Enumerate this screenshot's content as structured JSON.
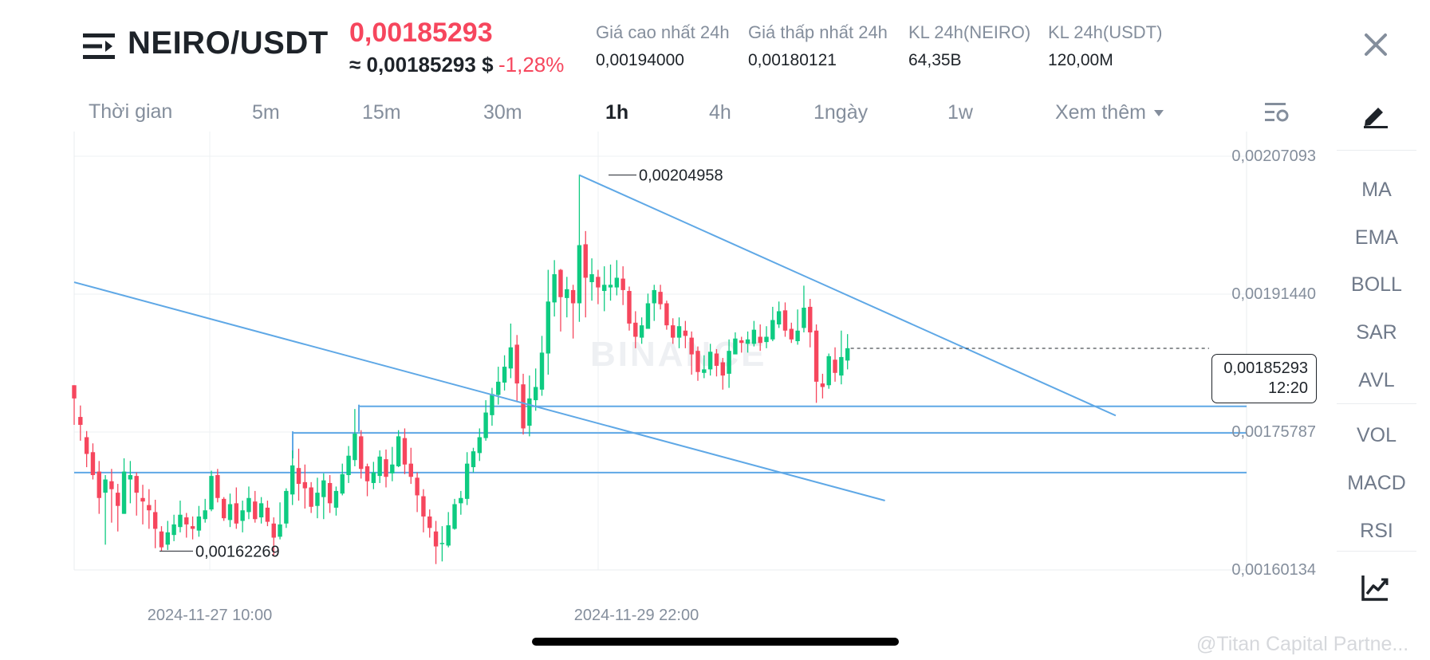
{
  "header": {
    "pair": "NEIRO/USDT",
    "last_price": "0,00185293",
    "approx_price": "≈ 0,00185293 $",
    "change_pct": "-1,28%",
    "stats": [
      {
        "label": "Giá cao nhất 24h",
        "value": "0,00194000"
      },
      {
        "label": "Giá thấp nhất 24h",
        "value": "0,00180121"
      },
      {
        "label": "KL 24h(NEIRO)",
        "value": "64,35B"
      },
      {
        "label": "KL 24h(USDT)",
        "value": "120,00M"
      }
    ]
  },
  "intervals": {
    "label": "Thời gian",
    "items": [
      "5m",
      "15m",
      "30m",
      "1h",
      "4h",
      "1ngày",
      "1w"
    ],
    "active": "1h",
    "more": "Xem thêm"
  },
  "indicators": [
    "MA",
    "EMA",
    "BOLL",
    "SAR",
    "AVL",
    "VOL",
    "MACD",
    "RSI"
  ],
  "colors": {
    "up": "#0ecb81",
    "down": "#f6465d",
    "trendline": "#5fa8e6",
    "text": "#1e2329",
    "muted": "#848e9c"
  },
  "icons": [
    "menu-icon",
    "close-icon",
    "chart-settings-icon",
    "draw-icon",
    "chart-type-icon"
  ],
  "chart_data": {
    "type": "candlestick",
    "interval": "1h",
    "price_ticks": [
      "0,00207093",
      "0,00191440",
      "0,00175787",
      "0,00160134"
    ],
    "price_tick_values": [
      0.00207093,
      0.0019144,
      0.00175787,
      0.00160134
    ],
    "time_ticks": [
      "2024-11-27 10:00",
      "2024-11-29 22:00"
    ],
    "current_price": "0,00185293",
    "current_price_value": 0.00185293,
    "countdown": "12:20",
    "high_label": "0,00204958",
    "high_value": 0.00204958,
    "low_label": "0,00162269",
    "low_value": 0.00162269,
    "watermark": "BINANCE",
    "horizontal_lines": [
      0.0017871,
      0.00175686,
      0.00171189
    ],
    "candles": [
      [
        0.001811,
        0.001796,
        0.001811,
        0.001766
      ],
      [
        0.001775,
        0.001766,
        0.001788,
        0.001748
      ],
      [
        0.001752,
        0.001733,
        0.001759,
        0.001718
      ],
      [
        0.001735,
        0.001709,
        0.001745,
        0.001704
      ],
      [
        0.001713,
        0.001683,
        0.001725,
        0.001665
      ],
      [
        0.001689,
        0.001704,
        0.001709,
        0.00163
      ],
      [
        0.001702,
        0.001693,
        0.001716,
        0.001655
      ],
      [
        0.001689,
        0.001674,
        0.001699,
        0.001645
      ],
      [
        0.001665,
        0.001713,
        0.001728,
        0.001665
      ],
      [
        0.001704,
        0.001709,
        0.001725,
        0.001677
      ],
      [
        0.001708,
        0.001689,
        0.001712,
        0.001663
      ],
      [
        0.001683,
        0.001679,
        0.001698,
        0.001653
      ],
      [
        0.001675,
        0.001669,
        0.001693,
        0.001648
      ],
      [
        0.001667,
        0.001648,
        0.001681,
        0.001626
      ],
      [
        0.001645,
        0.001627,
        0.001651,
        0.001623
      ],
      [
        0.00163,
        0.001644,
        0.001657,
        0.001624
      ],
      [
        0.001641,
        0.001653,
        0.001664,
        0.001634
      ],
      [
        0.00165,
        0.001664,
        0.00168,
        0.001644
      ],
      [
        0.001661,
        0.001653,
        0.001666,
        0.001638
      ],
      [
        0.001651,
        0.001648,
        0.001662,
        0.001636
      ],
      [
        0.001646,
        0.001662,
        0.001674,
        0.001639
      ],
      [
        0.001659,
        0.001669,
        0.001682,
        0.001655
      ],
      [
        0.00167,
        0.001708,
        0.001714,
        0.001668
      ],
      [
        0.001709,
        0.001683,
        0.001716,
        0.001678
      ],
      [
        0.001682,
        0.00166,
        0.001684,
        0.001657
      ],
      [
        0.001658,
        0.001676,
        0.001688,
        0.00165
      ],
      [
        0.001677,
        0.001654,
        0.001695,
        0.001648
      ],
      [
        0.001657,
        0.001669,
        0.00168,
        0.001644
      ],
      [
        0.001667,
        0.001683,
        0.001696,
        0.001659
      ],
      [
        0.001679,
        0.001659,
        0.001691,
        0.001655
      ],
      [
        0.001661,
        0.001677,
        0.001684,
        0.001654
      ],
      [
        0.001672,
        0.001656,
        0.00168,
        0.001651
      ],
      [
        0.001654,
        0.001638,
        0.001661,
        0.001618
      ],
      [
        0.001639,
        0.001653,
        0.001678,
        0.001636
      ],
      [
        0.001654,
        0.001691,
        0.001694,
        0.001649
      ],
      [
        0.001687,
        0.00172,
        0.001737,
        0.001675
      ],
      [
        0.001717,
        0.001699,
        0.001739,
        0.00168
      ],
      [
        0.001701,
        0.001694,
        0.001721,
        0.001671
      ],
      [
        0.001695,
        0.001673,
        0.001701,
        0.001666
      ],
      [
        0.001674,
        0.001689,
        0.001706,
        0.00166
      ],
      [
        0.001684,
        0.001703,
        0.001711,
        0.001659
      ],
      [
        0.0017,
        0.001677,
        0.001709,
        0.001666
      ],
      [
        0.001672,
        0.001691,
        0.001696,
        0.001663
      ],
      [
        0.001688,
        0.00171,
        0.001722,
        0.001686
      ],
      [
        0.001709,
        0.001731,
        0.001742,
        0.0017
      ],
      [
        0.001726,
        0.001756,
        0.001784,
        0.001719
      ],
      [
        0.001753,
        0.001716,
        0.00176,
        0.001705
      ],
      [
        0.001719,
        0.001702,
        0.001722,
        0.001685
      ],
      [
        0.0017,
        0.001712,
        0.001724,
        0.001693
      ],
      [
        0.001708,
        0.00173,
        0.001737,
        0.0017
      ],
      [
        0.001727,
        0.001707,
        0.001738,
        0.001695
      ],
      [
        0.001711,
        0.001721,
        0.001741,
        0.001702
      ],
      [
        0.001719,
        0.001753,
        0.00176,
        0.001718
      ],
      [
        0.001751,
        0.001721,
        0.001762,
        0.00171
      ],
      [
        0.001722,
        0.001707,
        0.00174,
        0.001699
      ],
      [
        0.001706,
        0.001686,
        0.001712,
        0.001667
      ],
      [
        0.001685,
        0.001662,
        0.001693,
        0.001644
      ],
      [
        0.001662,
        0.001649,
        0.00167,
        0.001638
      ],
      [
        0.001645,
        0.001628,
        0.001657,
        0.001608
      ],
      [
        0.001631,
        0.001632,
        0.001651,
        0.001611
      ],
      [
        0.001629,
        0.001652,
        0.001667,
        0.001627
      ],
      [
        0.001648,
        0.001676,
        0.001682,
        0.001647
      ],
      [
        0.001677,
        0.001683,
        0.001691,
        0.001664
      ],
      [
        0.001682,
        0.001722,
        0.001735,
        0.001675
      ],
      [
        0.001718,
        0.001736,
        0.00174,
        0.001712
      ],
      [
        0.001734,
        0.001752,
        0.001762,
        0.001725
      ],
      [
        0.001751,
        0.00178,
        0.001794,
        0.001748
      ],
      [
        0.001777,
        0.001801,
        0.001808,
        0.001765
      ],
      [
        0.0018,
        0.001815,
        0.001832,
        0.001789
      ],
      [
        0.001814,
        0.001832,
        0.001845,
        0.001805
      ],
      [
        0.00183,
        0.001854,
        0.001881,
        0.001819
      ],
      [
        0.001857,
        0.001813,
        0.001868,
        0.001792
      ],
      [
        0.001812,
        0.001762,
        0.001824,
        0.001755
      ],
      [
        0.001765,
        0.001796,
        0.001822,
        0.001753
      ],
      [
        0.001794,
        0.001809,
        0.00183,
        0.001782
      ],
      [
        0.001806,
        0.001848,
        0.001867,
        0.001799
      ],
      [
        0.001847,
        0.001906,
        0.001942,
        0.001823
      ],
      [
        0.001905,
        0.001937,
        0.001953,
        0.001889
      ],
      [
        0.001942,
        0.001911,
        0.001943,
        0.001872
      ],
      [
        0.00191,
        0.00192,
        0.001934,
        0.001888
      ],
      [
        0.001919,
        0.001904,
        0.001925,
        0.001864
      ],
      [
        0.001904,
        0.00197,
        0.00205,
        0.001883
      ],
      [
        0.001971,
        0.001933,
        0.001986,
        0.001888
      ],
      [
        0.001928,
        0.001937,
        0.001955,
        0.001907
      ],
      [
        0.001934,
        0.001922,
        0.001942,
        0.001903
      ],
      [
        0.001918,
        0.001925,
        0.001946,
        0.001895
      ],
      [
        0.001922,
        0.001925,
        0.001948,
        0.001907
      ],
      [
        0.001922,
        0.001933,
        0.001953,
        0.001913
      ],
      [
        0.001932,
        0.001919,
        0.001946,
        0.001902
      ],
      [
        0.001918,
        0.001881,
        0.001923,
        0.001873
      ],
      [
        0.001882,
        0.001866,
        0.001895,
        0.001853
      ],
      [
        0.001865,
        0.001879,
        0.001888,
        0.001858
      ],
      [
        0.001875,
        0.001904,
        0.001915,
        0.001876
      ],
      [
        0.001904,
        0.001919,
        0.001925,
        0.001884
      ],
      [
        0.001917,
        0.001903,
        0.001925,
        0.001897
      ],
      [
        0.001904,
        0.001879,
        0.001907,
        0.001874
      ],
      [
        0.001879,
        0.001865,
        0.001887,
        0.001858
      ],
      [
        0.001865,
        0.001878,
        0.001888,
        0.001853
      ],
      [
        0.001873,
        0.001867,
        0.001884,
        0.001853
      ],
      [
        0.001865,
        0.001846,
        0.001872,
        0.001823
      ],
      [
        0.00185,
        0.001826,
        0.001855,
        0.001816
      ],
      [
        0.001825,
        0.001829,
        0.001845,
        0.001819
      ],
      [
        0.001829,
        0.001849,
        0.001858,
        0.001822
      ],
      [
        0.001847,
        0.001833,
        0.001852,
        0.001821
      ],
      [
        0.001837,
        0.001822,
        0.001842,
        0.001806
      ],
      [
        0.001824,
        0.00185,
        0.001863,
        0.001808
      ],
      [
        0.001846,
        0.001864,
        0.001871,
        0.001847
      ],
      [
        0.001862,
        0.001859,
        0.001866,
        0.001848
      ],
      [
        0.001858,
        0.001863,
        0.001872,
        0.001848
      ],
      [
        0.001858,
        0.001874,
        0.001884,
        0.001855
      ],
      [
        0.001866,
        0.001859,
        0.00188,
        0.00185
      ],
      [
        0.00186,
        0.001866,
        0.001878,
        0.001853
      ],
      [
        0.001863,
        0.001885,
        0.0019,
        0.001861
      ],
      [
        0.00188,
        0.001895,
        0.001906,
        0.001876
      ],
      [
        0.001896,
        0.001873,
        0.001905,
        0.001866
      ],
      [
        0.001875,
        0.001863,
        0.001882,
        0.001859
      ],
      [
        0.001861,
        0.001873,
        0.001897,
        0.001857
      ],
      [
        0.001876,
        0.001899,
        0.001924,
        0.001871
      ],
      [
        0.0019,
        0.001871,
        0.001909,
        0.001854
      ],
      [
        0.001873,
        0.001815,
        0.00188,
        0.001791
      ],
      [
        0.001813,
        0.001809,
        0.001824,
        0.001796
      ],
      [
        0.001811,
        0.001844,
        0.001847,
        0.001807
      ],
      [
        0.00184,
        0.001825,
        0.001854,
        0.001815
      ],
      [
        0.001822,
        0.001843,
        0.001873,
        0.001812
      ],
      [
        0.001839,
        0.001853,
        0.001869,
        0.001829
      ]
    ]
  },
  "trendlines": [
    {
      "from": {
        "candle": 0,
        "price": 0.00192794
      },
      "to": {
        "candle": 130,
        "price": 0.00168005
      }
    },
    {
      "from": {
        "candle": 81,
        "price": 0.0020495
      },
      "to": {
        "candle": 167,
        "price": 0.00177654
      }
    }
  ],
  "footer": {
    "credit": "@Titan Capital Partne..."
  }
}
